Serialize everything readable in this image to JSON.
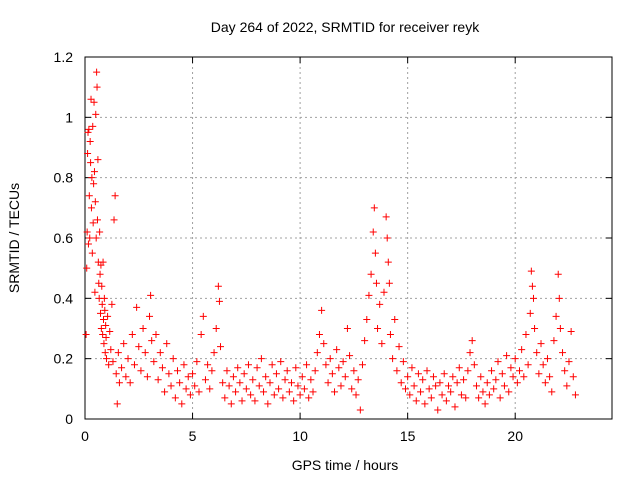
{
  "chart_data": {
    "type": "scatter",
    "title": "Day 264 of 2022, SRMTID for receiver reyk",
    "xlabel": "GPS time / hours",
    "ylabel": "SRMTID / TECUs",
    "xlim": [
      0,
      24.5
    ],
    "ylim": [
      0,
      1.2
    ],
    "xticks": [
      0,
      5,
      10,
      15,
      20
    ],
    "yticks": [
      0,
      0.2,
      0.4,
      0.6,
      0.8,
      1,
      1.2
    ],
    "xtick_labels": [
      "0",
      "5",
      "10",
      "15",
      "20"
    ],
    "ytick_labels": [
      "0",
      "0.2",
      "0.4",
      "0.6",
      "0.8",
      "1",
      "1.2"
    ],
    "grid": true,
    "marker": "+",
    "color": "#ff0000",
    "series": [
      {
        "name": "reyk",
        "points": [
          [
            0.05,
            0.28
          ],
          [
            0.08,
            0.5
          ],
          [
            0.1,
            0.62
          ],
          [
            0.12,
            0.88
          ],
          [
            0.14,
            0.95
          ],
          [
            0.16,
            0.58
          ],
          [
            0.18,
            0.96
          ],
          [
            0.2,
            0.74
          ],
          [
            0.22,
            0.6
          ],
          [
            0.24,
            0.92
          ],
          [
            0.26,
            0.85
          ],
          [
            0.28,
            1.06
          ],
          [
            0.3,
            0.7
          ],
          [
            0.32,
            0.8
          ],
          [
            0.34,
            0.55
          ],
          [
            0.36,
            0.97
          ],
          [
            0.38,
            0.65
          ],
          [
            0.4,
            0.78
          ],
          [
            0.42,
            1.05
          ],
          [
            0.44,
            0.82
          ],
          [
            0.46,
            0.42
          ],
          [
            0.48,
            0.72
          ],
          [
            0.5,
            1.01
          ],
          [
            0.52,
            0.6
          ],
          [
            0.54,
            1.15
          ],
          [
            0.56,
            1.1
          ],
          [
            0.58,
            0.66
          ],
          [
            0.6,
            0.86
          ],
          [
            0.62,
            0.52
          ],
          [
            0.64,
            0.45
          ],
          [
            0.66,
            0.4
          ],
          [
            0.68,
            0.62
          ],
          [
            0.7,
            0.48
          ],
          [
            0.72,
            0.35
          ],
          [
            0.74,
            0.51
          ],
          [
            0.76,
            0.3
          ],
          [
            0.78,
            0.44
          ],
          [
            0.8,
            0.38
          ],
          [
            0.82,
            0.28
          ],
          [
            0.84,
            0.52
          ],
          [
            0.86,
            0.33
          ],
          [
            0.88,
            0.25
          ],
          [
            0.9,
            0.4
          ],
          [
            0.92,
            0.36
          ],
          [
            0.94,
            0.22
          ],
          [
            0.96,
            0.31
          ],
          [
            0.98,
            0.27
          ],
          [
            1.0,
            0.2
          ],
          [
            1.05,
            0.34
          ],
          [
            1.1,
            0.18
          ],
          [
            1.15,
            0.29
          ],
          [
            1.2,
            0.23
          ],
          [
            1.25,
            0.38
          ],
          [
            1.3,
            0.19
          ],
          [
            1.35,
            0.66
          ],
          [
            1.4,
            0.74
          ],
          [
            1.45,
            0.15
          ],
          [
            1.5,
            0.05
          ],
          [
            1.55,
            0.22
          ],
          [
            1.6,
            0.12
          ],
          [
            1.7,
            0.17
          ],
          [
            1.8,
            0.25
          ],
          [
            1.9,
            0.14
          ],
          [
            2.0,
            0.2
          ],
          [
            2.1,
            0.12
          ],
          [
            2.2,
            0.28
          ],
          [
            2.3,
            0.18
          ],
          [
            2.4,
            0.37
          ],
          [
            2.5,
            0.24
          ],
          [
            2.6,
            0.16
          ],
          [
            2.7,
            0.3
          ],
          [
            2.8,
            0.22
          ],
          [
            2.9,
            0.14
          ],
          [
            3.0,
            0.34
          ],
          [
            3.05,
            0.41
          ],
          [
            3.1,
            0.26
          ],
          [
            3.2,
            0.19
          ],
          [
            3.3,
            0.28
          ],
          [
            3.4,
            0.13
          ],
          [
            3.5,
            0.22
          ],
          [
            3.6,
            0.17
          ],
          [
            3.7,
            0.09
          ],
          [
            3.8,
            0.25
          ],
          [
            3.9,
            0.15
          ],
          [
            4.0,
            0.11
          ],
          [
            4.1,
            0.2
          ],
          [
            4.2,
            0.07
          ],
          [
            4.3,
            0.16
          ],
          [
            4.4,
            0.12
          ],
          [
            4.5,
            0.05
          ],
          [
            4.6,
            0.18
          ],
          [
            4.7,
            0.1
          ],
          [
            4.8,
            0.14
          ],
          [
            4.9,
            0.08
          ],
          [
            5.0,
            0.15
          ],
          [
            5.1,
            0.11
          ],
          [
            5.2,
            0.19
          ],
          [
            5.3,
            0.09
          ],
          [
            5.4,
            0.28
          ],
          [
            5.5,
            0.34
          ],
          [
            5.6,
            0.13
          ],
          [
            5.7,
            0.18
          ],
          [
            5.8,
            0.1
          ],
          [
            5.9,
            0.16
          ],
          [
            6.0,
            0.22
          ],
          [
            6.1,
            0.3
          ],
          [
            6.2,
            0.44
          ],
          [
            6.25,
            0.39
          ],
          [
            6.3,
            0.24
          ],
          [
            6.4,
            0.12
          ],
          [
            6.5,
            0.07
          ],
          [
            6.6,
            0.16
          ],
          [
            6.7,
            0.11
          ],
          [
            6.8,
            0.05
          ],
          [
            6.9,
            0.14
          ],
          [
            7.0,
            0.09
          ],
          [
            7.1,
            0.17
          ],
          [
            7.2,
            0.12
          ],
          [
            7.3,
            0.06
          ],
          [
            7.4,
            0.15
          ],
          [
            7.5,
            0.1
          ],
          [
            7.6,
            0.18
          ],
          [
            7.7,
            0.08
          ],
          [
            7.8,
            0.13
          ],
          [
            7.9,
            0.06
          ],
          [
            8.0,
            0.17
          ],
          [
            8.1,
            0.11
          ],
          [
            8.2,
            0.2
          ],
          [
            8.3,
            0.09
          ],
          [
            8.4,
            0.14
          ],
          [
            8.5,
            0.05
          ],
          [
            8.6,
            0.12
          ],
          [
            8.7,
            0.18
          ],
          [
            8.8,
            0.08
          ],
          [
            8.9,
            0.15
          ],
          [
            9.0,
            0.1
          ],
          [
            9.1,
            0.19
          ],
          [
            9.2,
            0.07
          ],
          [
            9.3,
            0.13
          ],
          [
            9.4,
            0.16
          ],
          [
            9.5,
            0.09
          ],
          [
            9.6,
            0.12
          ],
          [
            9.7,
            0.06
          ],
          [
            9.8,
            0.17
          ],
          [
            9.9,
            0.11
          ],
          [
            10.0,
            0.08
          ],
          [
            10.1,
            0.14
          ],
          [
            10.2,
            0.1
          ],
          [
            10.3,
            0.18
          ],
          [
            10.4,
            0.07
          ],
          [
            10.5,
            0.13
          ],
          [
            10.6,
            0.09
          ],
          [
            10.7,
            0.16
          ],
          [
            10.8,
            0.22
          ],
          [
            10.9,
            0.28
          ],
          [
            11.0,
            0.36
          ],
          [
            11.1,
            0.25
          ],
          [
            11.2,
            0.18
          ],
          [
            11.3,
            0.12
          ],
          [
            11.4,
            0.2
          ],
          [
            11.5,
            0.15
          ],
          [
            11.6,
            0.09
          ],
          [
            11.7,
            0.23
          ],
          [
            11.8,
            0.17
          ],
          [
            11.9,
            0.11
          ],
          [
            12.0,
            0.19
          ],
          [
            12.1,
            0.14
          ],
          [
            12.2,
            0.3
          ],
          [
            12.3,
            0.21
          ],
          [
            12.4,
            0.1
          ],
          [
            12.5,
            0.16
          ],
          [
            12.6,
            0.08
          ],
          [
            12.7,
            0.13
          ],
          [
            12.8,
            0.03
          ],
          [
            12.9,
            0.18
          ],
          [
            13.0,
            0.26
          ],
          [
            13.1,
            0.33
          ],
          [
            13.2,
            0.41
          ],
          [
            13.3,
            0.48
          ],
          [
            13.4,
            0.62
          ],
          [
            13.45,
            0.7
          ],
          [
            13.5,
            0.55
          ],
          [
            13.55,
            0.45
          ],
          [
            13.6,
            0.3
          ],
          [
            13.7,
            0.38
          ],
          [
            13.8,
            0.25
          ],
          [
            13.9,
            0.42
          ],
          [
            14.0,
            0.67
          ],
          [
            14.05,
            0.6
          ],
          [
            14.1,
            0.52
          ],
          [
            14.15,
            0.45
          ],
          [
            14.2,
            0.28
          ],
          [
            14.3,
            0.2
          ],
          [
            14.4,
            0.33
          ],
          [
            14.5,
            0.16
          ],
          [
            14.6,
            0.24
          ],
          [
            14.7,
            0.12
          ],
          [
            14.8,
            0.19
          ],
          [
            14.9,
            0.1
          ],
          [
            15.0,
            0.14
          ],
          [
            15.1,
            0.08
          ],
          [
            15.2,
            0.17
          ],
          [
            15.3,
            0.11
          ],
          [
            15.4,
            0.06
          ],
          [
            15.5,
            0.15
          ],
          [
            15.6,
            0.09
          ],
          [
            15.7,
            0.13
          ],
          [
            15.8,
            0.05
          ],
          [
            15.9,
            0.16
          ],
          [
            16.0,
            0.1
          ],
          [
            16.1,
            0.07
          ],
          [
            16.2,
            0.14
          ],
          [
            16.3,
            0.11
          ],
          [
            16.4,
            0.03
          ],
          [
            16.5,
            0.12
          ],
          [
            16.6,
            0.08
          ],
          [
            16.7,
            0.15
          ],
          [
            16.8,
            0.06
          ],
          [
            16.9,
            0.11
          ],
          [
            17.0,
            0.09
          ],
          [
            17.1,
            0.14
          ],
          [
            17.2,
            0.04
          ],
          [
            17.3,
            0.12
          ],
          [
            17.4,
            0.17
          ],
          [
            17.5,
            0.08
          ],
          [
            17.6,
            0.13
          ],
          [
            17.7,
            0.07
          ],
          [
            17.8,
            0.16
          ],
          [
            17.9,
            0.22
          ],
          [
            18.0,
            0.26
          ],
          [
            18.1,
            0.18
          ],
          [
            18.2,
            0.11
          ],
          [
            18.3,
            0.07
          ],
          [
            18.4,
            0.14
          ],
          [
            18.5,
            0.09
          ],
          [
            18.6,
            0.05
          ],
          [
            18.7,
            0.12
          ],
          [
            18.8,
            0.08
          ],
          [
            18.9,
            0.16
          ],
          [
            19.0,
            0.1
          ],
          [
            19.1,
            0.13
          ],
          [
            19.2,
            0.19
          ],
          [
            19.3,
            0.07
          ],
          [
            19.4,
            0.15
          ],
          [
            19.5,
            0.11
          ],
          [
            19.6,
            0.21
          ],
          [
            19.7,
            0.09
          ],
          [
            19.8,
            0.17
          ],
          [
            19.9,
            0.14
          ],
          [
            20.0,
            0.2
          ],
          [
            20.1,
            0.12
          ],
          [
            20.2,
            0.16
          ],
          [
            20.3,
            0.23
          ],
          [
            20.4,
            0.14
          ],
          [
            20.5,
            0.28
          ],
          [
            20.6,
            0.18
          ],
          [
            20.7,
            0.35
          ],
          [
            20.75,
            0.49
          ],
          [
            20.8,
            0.44
          ],
          [
            20.85,
            0.4
          ],
          [
            20.9,
            0.3
          ],
          [
            21.0,
            0.22
          ],
          [
            21.1,
            0.15
          ],
          [
            21.2,
            0.25
          ],
          [
            21.3,
            0.18
          ],
          [
            21.4,
            0.12
          ],
          [
            21.5,
            0.2
          ],
          [
            21.6,
            0.14
          ],
          [
            21.7,
            0.09
          ],
          [
            21.8,
            0.26
          ],
          [
            21.9,
            0.34
          ],
          [
            22.0,
            0.48
          ],
          [
            22.05,
            0.4
          ],
          [
            22.1,
            0.3
          ],
          [
            22.2,
            0.22
          ],
          [
            22.3,
            0.16
          ],
          [
            22.4,
            0.11
          ],
          [
            22.5,
            0.19
          ],
          [
            22.6,
            0.29
          ],
          [
            22.7,
            0.14
          ],
          [
            22.8,
            0.08
          ]
        ]
      }
    ]
  }
}
